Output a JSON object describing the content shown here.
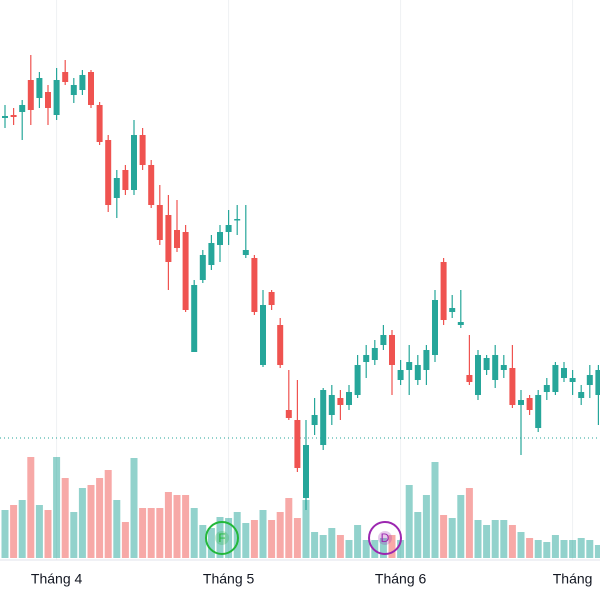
{
  "chart_data": {
    "type": "candlestick",
    "categories": [
      null,
      null,
      null,
      null,
      null,
      null,
      "Tháng 4",
      null,
      null,
      null,
      null,
      null,
      null,
      null,
      null,
      null,
      null,
      null,
      null,
      null,
      null,
      null,
      null,
      null,
      null,
      null,
      "Tháng 5",
      null,
      null,
      null,
      null,
      null,
      null,
      null,
      null,
      null,
      null,
      null,
      null,
      null,
      null,
      null,
      null,
      null,
      null,
      null,
      "Tháng 6",
      null,
      null,
      null,
      null,
      null,
      null,
      null,
      null,
      null,
      null,
      null,
      null,
      null,
      null,
      null,
      null,
      null,
      null,
      null,
      "Tháng",
      null,
      null,
      null
    ],
    "open": [
      482,
      485,
      488,
      520,
      502,
      508,
      485,
      528,
      505,
      510,
      528,
      495,
      460,
      402,
      430,
      410,
      465,
      435,
      395,
      385,
      370,
      368,
      248,
      320,
      335,
      355,
      368,
      380,
      345,
      342,
      235,
      308,
      275,
      190,
      180,
      102,
      175,
      155,
      185,
      202,
      195,
      205,
      238,
      240,
      255,
      265,
      220,
      230,
      220,
      230,
      245,
      338,
      288,
      275,
      225,
      205,
      230,
      220,
      230,
      232,
      195,
      202,
      172,
      208,
      208,
      222,
      218,
      202,
      215,
      205
    ],
    "high": [
      495,
      492,
      500,
      545,
      528,
      515,
      532,
      540,
      522,
      530,
      530,
      498,
      465,
      430,
      435,
      480,
      472,
      440,
      415,
      405,
      400,
      375,
      320,
      350,
      365,
      375,
      390,
      395,
      395,
      345,
      310,
      310,
      282,
      230,
      220,
      180,
      202,
      212,
      215,
      210,
      215,
      245,
      255,
      260,
      275,
      270,
      240,
      255,
      245,
      255,
      310,
      342,
      305,
      310,
      265,
      250,
      245,
      255,
      245,
      255,
      210,
      205,
      210,
      222,
      238,
      238,
      230,
      215,
      235,
      235
    ],
    "low": [
      472,
      475,
      460,
      475,
      492,
      475,
      480,
      515,
      497,
      505,
      492,
      455,
      388,
      382,
      405,
      405,
      430,
      392,
      355,
      310,
      348,
      288,
      248,
      317,
      330,
      338,
      355,
      365,
      342,
      285,
      233,
      290,
      232,
      180,
      128,
      90,
      165,
      150,
      175,
      180,
      190,
      202,
      222,
      235,
      250,
      205,
      215,
      205,
      215,
      215,
      238,
      275,
      282,
      272,
      215,
      200,
      225,
      212,
      222,
      192,
      145,
      185,
      168,
      200,
      205,
      218,
      205,
      195,
      202,
      175
    ],
    "close": [
      484,
      483,
      495,
      490,
      522,
      492,
      520,
      518,
      515,
      525,
      495,
      458,
      395,
      422,
      410,
      465,
      435,
      395,
      360,
      338,
      352,
      290,
      315,
      345,
      357,
      368,
      375,
      381,
      350,
      288,
      295,
      295,
      235,
      182,
      132,
      155,
      185,
      210,
      205,
      195,
      208,
      235,
      245,
      252,
      265,
      235,
      230,
      238,
      235,
      250,
      300,
      280,
      292,
      278,
      218,
      245,
      242,
      245,
      235,
      195,
      200,
      190,
      205,
      215,
      235,
      232,
      222,
      208,
      225,
      230
    ],
    "volume": [
      48,
      53,
      58,
      101,
      53,
      48,
      101,
      80,
      46,
      70,
      73,
      80,
      88,
      58,
      36,
      100,
      50,
      50,
      50,
      66,
      63,
      63,
      50,
      33,
      30,
      41,
      40,
      46,
      35,
      38,
      48,
      38,
      46,
      60,
      40,
      58,
      26,
      23,
      30,
      23,
      18,
      33,
      18,
      18,
      20,
      23,
      18,
      73,
      46,
      63,
      96,
      43,
      40,
      63,
      70,
      38,
      33,
      38,
      38,
      33,
      26,
      20,
      18,
      16,
      23,
      18,
      18,
      20,
      18,
      13
    ],
    "up_color": "#26a69a",
    "down_color": "#ef5350",
    "ylim": [
      0,
      600
    ],
    "volume_ylim": [
      0,
      120
    ],
    "reference_line": 162,
    "grid": true,
    "events": [
      {
        "label": "F",
        "color": "#22b83a"
      },
      {
        "label": "D",
        "color": "#9c27b0"
      }
    ]
  }
}
